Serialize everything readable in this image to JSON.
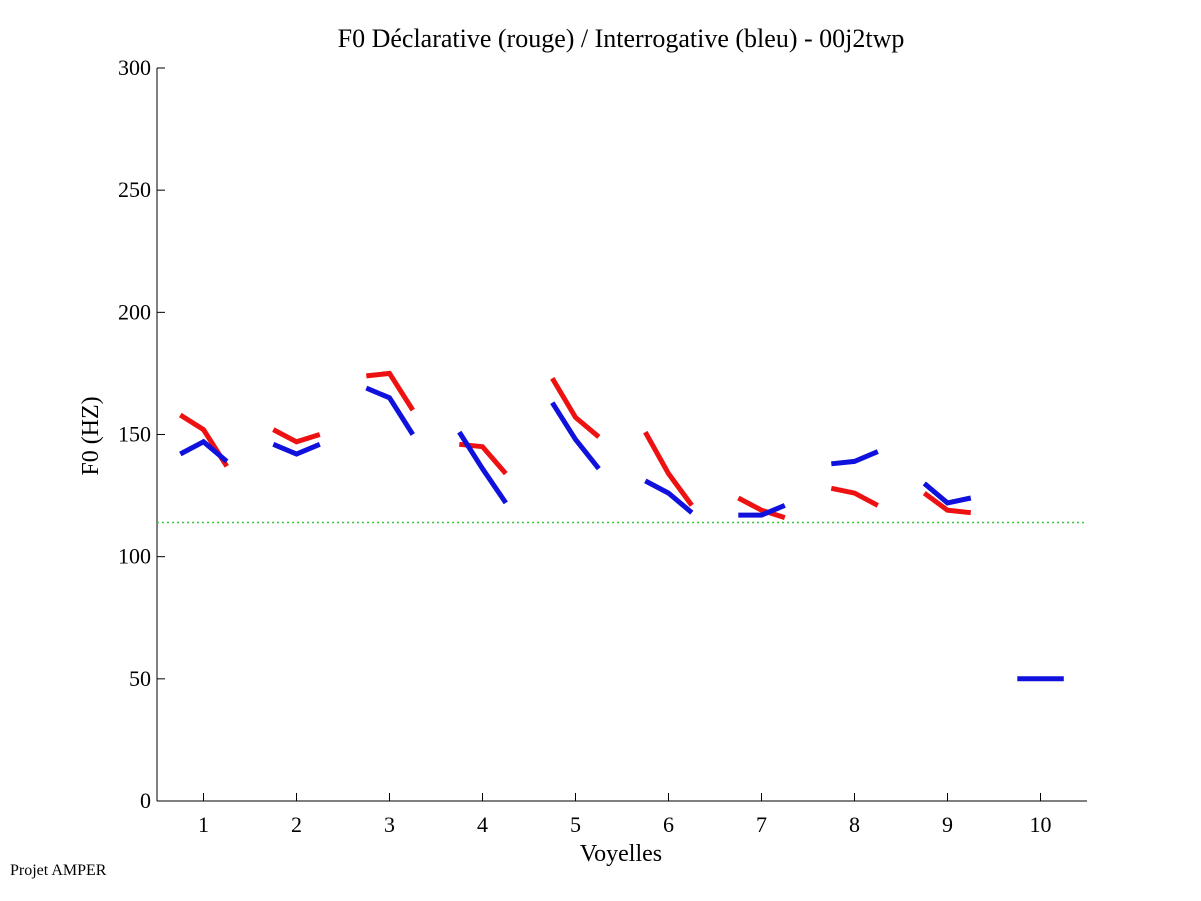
{
  "footer": "Projet AMPER",
  "chart_data": {
    "type": "line",
    "title": "F0 Déclarative (rouge) / Interrogative (bleu) - 00j2twp",
    "xlabel": "Voyelles",
    "ylabel": "F0 (HZ)",
    "xlim": [
      0.5,
      10.5
    ],
    "ylim": [
      0,
      300
    ],
    "xticks": [
      1,
      2,
      3,
      4,
      5,
      6,
      7,
      8,
      9,
      10
    ],
    "yticks": [
      0,
      50,
      100,
      150,
      200,
      250,
      300
    ],
    "grid": false,
    "reference_line": {
      "y": 114,
      "color": "#33cc33",
      "style": "dotted"
    },
    "series": [
      {
        "name": "Déclarative (rouge)",
        "color": "#ee1111",
        "segments": [
          [
            [
              0.75,
              158
            ],
            [
              1.0,
              152
            ],
            [
              1.25,
              137
            ]
          ],
          [
            [
              1.75,
              152
            ],
            [
              2.0,
              147
            ],
            [
              2.25,
              150
            ]
          ],
          [
            [
              2.75,
              174
            ],
            [
              3.0,
              175
            ],
            [
              3.25,
              160
            ]
          ],
          [
            [
              3.75,
              146
            ],
            [
              4.0,
              145
            ],
            [
              4.25,
              134
            ]
          ],
          [
            [
              4.75,
              173
            ],
            [
              5.0,
              157
            ],
            [
              5.25,
              149
            ]
          ],
          [
            [
              5.75,
              151
            ],
            [
              6.0,
              134
            ],
            [
              6.25,
              121
            ]
          ],
          [
            [
              6.75,
              124
            ],
            [
              7.0,
              119
            ],
            [
              7.25,
              116
            ]
          ],
          [
            [
              7.75,
              128
            ],
            [
              8.0,
              126
            ],
            [
              8.25,
              121
            ]
          ],
          [
            [
              8.75,
              126
            ],
            [
              9.0,
              119
            ],
            [
              9.25,
              118
            ]
          ]
        ]
      },
      {
        "name": "Interrogative (bleu)",
        "color": "#1111dd",
        "segments": [
          [
            [
              0.75,
              142
            ],
            [
              1.0,
              147
            ],
            [
              1.25,
              139
            ]
          ],
          [
            [
              1.75,
              146
            ],
            [
              2.0,
              142
            ],
            [
              2.25,
              146
            ]
          ],
          [
            [
              2.75,
              169
            ],
            [
              3.0,
              165
            ],
            [
              3.25,
              150
            ]
          ],
          [
            [
              3.75,
              151
            ],
            [
              4.0,
              136
            ],
            [
              4.25,
              122
            ]
          ],
          [
            [
              4.75,
              163
            ],
            [
              5.0,
              148
            ],
            [
              5.25,
              136
            ]
          ],
          [
            [
              5.75,
              131
            ],
            [
              6.0,
              126
            ],
            [
              6.25,
              118
            ]
          ],
          [
            [
              6.75,
              117
            ],
            [
              7.0,
              117
            ],
            [
              7.25,
              121
            ]
          ],
          [
            [
              7.75,
              138
            ],
            [
              8.0,
              139
            ],
            [
              8.25,
              143
            ]
          ],
          [
            [
              8.75,
              130
            ],
            [
              9.0,
              122
            ],
            [
              9.25,
              124
            ]
          ],
          [
            [
              9.75,
              50
            ],
            [
              10.0,
              50
            ],
            [
              10.25,
              50
            ]
          ]
        ]
      }
    ]
  }
}
